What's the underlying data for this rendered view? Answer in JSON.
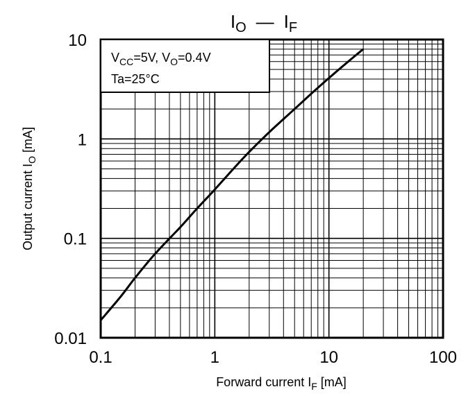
{
  "chart_data": {
    "type": "line",
    "title": {
      "main": "I",
      "main_sub": "O",
      "dash": "—",
      "second": "I",
      "second_sub": "F"
    },
    "xlabel": {
      "text": "Forward current I",
      "sub": "F",
      "unit": " [mA]"
    },
    "ylabel": {
      "text": "Output current   I",
      "sub": "O",
      "unit": " [mA]"
    },
    "xscale": "log",
    "yscale": "log",
    "xlim": [
      0.1,
      100
    ],
    "ylim": [
      0.01,
      10
    ],
    "xticks": [
      "0.1",
      "1",
      "10",
      "100"
    ],
    "yticks": [
      "0.01",
      "0.1",
      "1",
      "10"
    ],
    "grid": true,
    "legend_position": "top-left",
    "conditions": {
      "line1": {
        "v1": "V",
        "v1_sub": "CC",
        "v1_rest": "=5V, V",
        "v2_sub": "O",
        "v2_rest": "=0.4V"
      },
      "line2": "Ta=25°C"
    },
    "series": [
      {
        "x": [
          0.1,
          0.15,
          0.2,
          0.3,
          0.5,
          0.7,
          1,
          1.5,
          2,
          3,
          5,
          7,
          10,
          15,
          20
        ],
        "y": [
          0.015,
          0.026,
          0.04,
          0.07,
          0.13,
          0.2,
          0.31,
          0.52,
          0.74,
          1.17,
          2.0,
          2.85,
          4.1,
          6.1,
          8.0
        ]
      }
    ],
    "line_color": "#000000"
  }
}
